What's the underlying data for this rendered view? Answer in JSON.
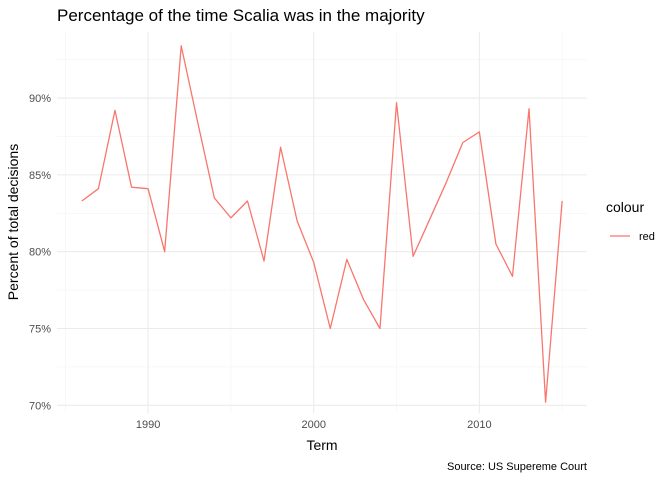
{
  "chart_data": {
    "type": "line",
    "title": "Percentage of the time Scalia was in the majority",
    "xlabel": "Term",
    "ylabel": "Percent of total decisions",
    "caption": "Source: US Supereme Court",
    "legend": {
      "title": "colour",
      "placement": "right",
      "entries": [
        "red"
      ]
    },
    "grid": true,
    "xlim": [
      1984.5,
      2016.5
    ],
    "ylim": [
      69.5,
      94.3
    ],
    "x_ticks": [
      1990,
      2000,
      2010
    ],
    "x_tick_labels": [
      "1990",
      "2000",
      "2010"
    ],
    "y_ticks": [
      70,
      75,
      80,
      85,
      90
    ],
    "y_tick_labels": [
      "70%",
      "75%",
      "80%",
      "85%",
      "90%"
    ],
    "series": [
      {
        "name": "red",
        "color": "#F8766D",
        "x": [
          1986,
          1987,
          1988,
          1989,
          1990,
          1991,
          1992,
          1993,
          1994,
          1995,
          1996,
          1997,
          1998,
          1999,
          2000,
          2001,
          2002,
          2003,
          2004,
          2005,
          2006,
          2007,
          2008,
          2009,
          2010,
          2011,
          2012,
          2013,
          2014,
          2015
        ],
        "values": [
          83.3,
          84.1,
          89.2,
          84.2,
          84.1,
          80.0,
          93.4,
          88.4,
          83.5,
          82.2,
          83.3,
          79.4,
          86.8,
          82.0,
          79.3,
          75.0,
          79.5,
          76.9,
          75.0,
          89.7,
          79.7,
          82.1,
          84.5,
          87.1,
          87.8,
          80.5,
          78.4,
          89.3,
          70.2,
          83.3
        ]
      }
    ]
  }
}
